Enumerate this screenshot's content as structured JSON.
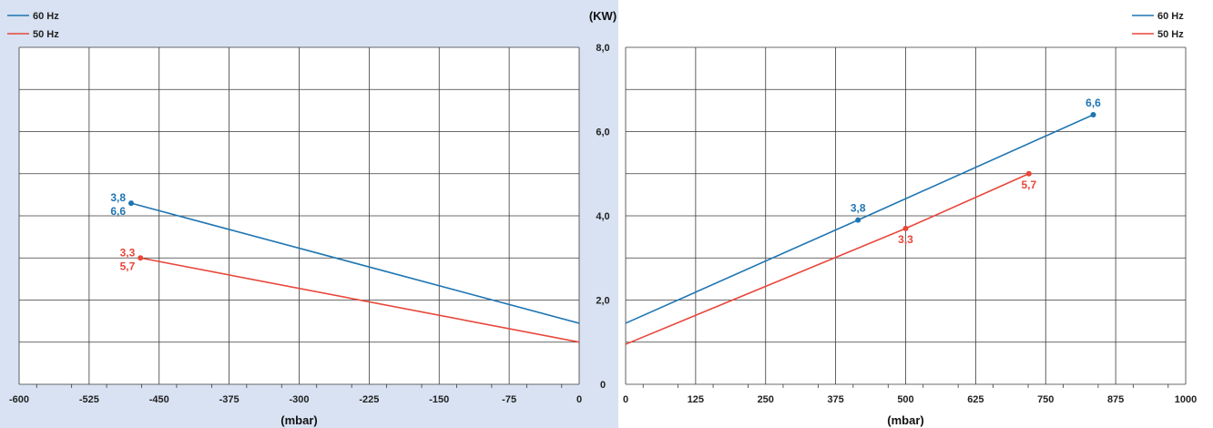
{
  "colors": {
    "hz60": "#1f75b2",
    "hz50": "#e8473a",
    "grid": "#3a3a3a",
    "background_left": "#d8e2f2"
  },
  "shared_axis": {
    "y_unit": "(KW)",
    "y_ticks": [
      "0",
      "2,0",
      "4,0",
      "6,0",
      "8,0"
    ]
  },
  "chart_data": [
    {
      "type": "line",
      "xlabel": "(mbar)",
      "ylabel": "(KW)",
      "xlim": [
        -600,
        0
      ],
      "ylim": [
        0,
        8
      ],
      "x_ticks": [
        "-600",
        "-525",
        "-450",
        "-375",
        "-300",
        "-225",
        "-150",
        "-75",
        "0"
      ],
      "grid": true,
      "legend_position": "top-left",
      "legend": [
        "60 Hz",
        "50 Hz"
      ],
      "series": [
        {
          "name": "60 Hz",
          "points": [
            [
              -480,
              4.3
            ],
            [
              0,
              1.45
            ]
          ],
          "label_lines": [
            "3,8",
            "6,6"
          ]
        },
        {
          "name": "50 Hz",
          "points": [
            [
              -470,
              3.0
            ],
            [
              0,
              1.0
            ]
          ],
          "label_lines": [
            "3,3",
            "5,7"
          ]
        }
      ]
    },
    {
      "type": "line",
      "xlabel": "(mbar)",
      "ylabel": "(KW)",
      "xlim": [
        0,
        1000
      ],
      "ylim": [
        0,
        8
      ],
      "x_ticks": [
        "0",
        "125",
        "250",
        "375",
        "500",
        "625",
        "750",
        "875",
        "1000"
      ],
      "grid": true,
      "legend_position": "top-right",
      "legend": [
        "60 Hz",
        "50 Hz"
      ],
      "series": [
        {
          "name": "60 Hz",
          "points": [
            [
              0,
              1.45
            ],
            [
              415,
              3.9
            ],
            [
              835,
              6.4
            ]
          ],
          "point_labels": [
            "",
            "3,8",
            "6,6"
          ]
        },
        {
          "name": "50 Hz",
          "points": [
            [
              0,
              0.95
            ],
            [
              500,
              3.7
            ],
            [
              720,
              5.0
            ]
          ],
          "point_labels": [
            "",
            "3,3",
            "5,7"
          ]
        }
      ]
    }
  ]
}
